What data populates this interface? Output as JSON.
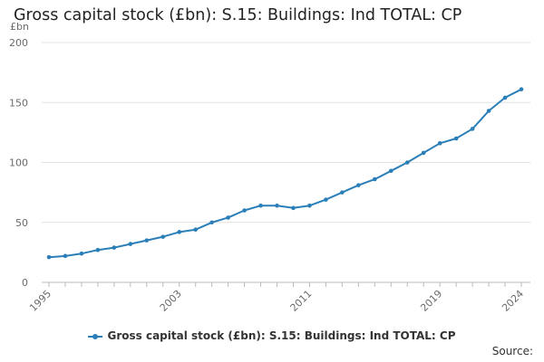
{
  "chart_data": {
    "type": "line",
    "title": "Gross capital stock (£bn): S.15: Buildings: Ind TOTAL: CP",
    "ylabel": "£bn",
    "xlabel": "",
    "ylim": [
      0,
      200
    ],
    "yticks": [
      0,
      50,
      100,
      150,
      200
    ],
    "xlim": [
      1995,
      2024
    ],
    "xticks": [
      1995,
      2003,
      2011,
      2019,
      2024
    ],
    "grid": true,
    "legend_position": "bottom",
    "series": [
      {
        "name": "Gross capital stock (£bn): S.15: Buildings: Ind TOTAL: CP",
        "color": "#2b7fb8",
        "x": [
          1995,
          1996,
          1997,
          1998,
          1999,
          2000,
          2001,
          2002,
          2003,
          2004,
          2005,
          2006,
          2007,
          2008,
          2009,
          2010,
          2011,
          2012,
          2013,
          2014,
          2015,
          2016,
          2017,
          2018,
          2019,
          2020,
          2021,
          2022,
          2023,
          2024
        ],
        "values": [
          21,
          22,
          24,
          27,
          29,
          32,
          35,
          38,
          42,
          44,
          50,
          54,
          60,
          64,
          64,
          62,
          64,
          69,
          75,
          81,
          86,
          93,
          100,
          108,
          116,
          120,
          128,
          143,
          154,
          161
        ]
      }
    ]
  },
  "source_label": "Source:"
}
